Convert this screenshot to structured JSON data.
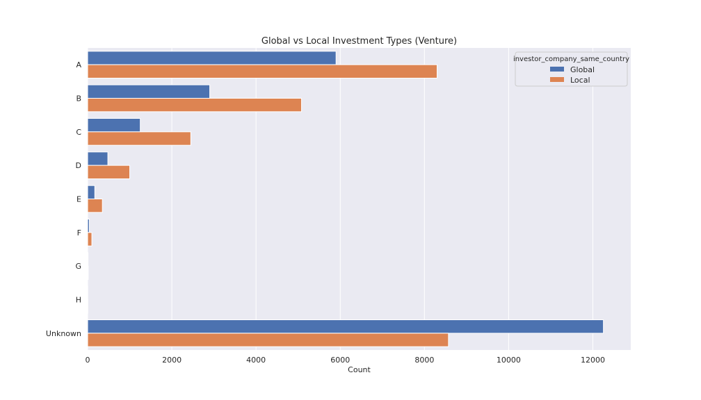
{
  "chart_data": {
    "type": "bar",
    "orientation": "horizontal",
    "title": "Global vs Local Investment Types (Venture)",
    "xlabel": "Count",
    "ylabel": "",
    "categories": [
      "A",
      "B",
      "C",
      "D",
      "E",
      "F",
      "G",
      "H",
      "Unknown"
    ],
    "series": [
      {
        "name": "Global",
        "color": "#4c72b0",
        "values": [
          5900,
          2900,
          1250,
          480,
          170,
          40,
          10,
          3,
          12250
        ]
      },
      {
        "name": "Local",
        "color": "#dd8452",
        "values": [
          8300,
          5080,
          2450,
          1000,
          350,
          100,
          15,
          5,
          8570
        ]
      }
    ],
    "xlim": [
      0,
      12900
    ],
    "xticks": [
      0,
      2000,
      4000,
      6000,
      8000,
      10000,
      12000
    ],
    "grid": true,
    "legend": {
      "title": "investor_company_same_country",
      "placement": "top-right"
    },
    "colors": {
      "plot_background": "#eaeaf2",
      "grid": "#ffffff"
    }
  }
}
